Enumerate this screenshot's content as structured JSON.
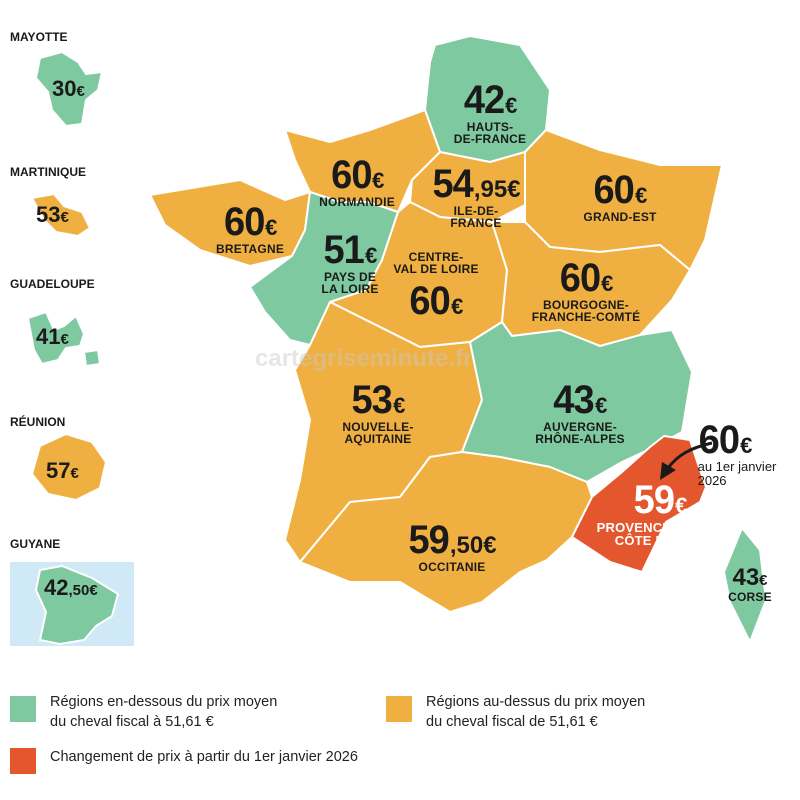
{
  "colors": {
    "below": "#7fc9a0",
    "above": "#f0b041",
    "change": "#e4572e",
    "sea": "#cfe9f7"
  },
  "watermark": "cartegriseminute.fr",
  "regions": {
    "hdf": {
      "value": "42",
      "suffix": "€",
      "name": "HAUTS-\nDE-FRANCE"
    },
    "normandie": {
      "value": "60",
      "suffix": "€",
      "name": "NORMANDIE"
    },
    "idf": {
      "value": "54",
      "suffix": ",95€",
      "name": "ILE-DE-\nFRANCE"
    },
    "grandest": {
      "value": "60",
      "suffix": "€",
      "name": "GRAND-EST"
    },
    "bretagne": {
      "value": "60",
      "suffix": "€",
      "name": "BRETAGNE"
    },
    "pdl": {
      "value": "51",
      "suffix": "€",
      "name": "PAYS DE\nLA LOIRE"
    },
    "cvl": {
      "value": "60",
      "suffix": "€",
      "name": "CENTRE-\nVAL DE LOIRE"
    },
    "bfc": {
      "value": "60",
      "suffix": "€",
      "name": "BOURGOGNE-\nFRANCHE-COMTÉ"
    },
    "na": {
      "value": "53",
      "suffix": "€",
      "name": "NOUVELLE-\nAQUITAINE"
    },
    "ara": {
      "value": "43",
      "suffix": "€",
      "name": "AUVERGNE-\nRHÔNE-ALPES"
    },
    "paca": {
      "value": "59",
      "suffix": "€",
      "name": "PROVENCE- ALPES\nCÔTE D'AZUR"
    },
    "occitanie": {
      "value": "59",
      "suffix": ",50€",
      "name": "OCCITANIE"
    },
    "corse": {
      "value": "43",
      "suffix": "€",
      "name": "CORSE"
    }
  },
  "paca_change": {
    "value": "60",
    "suffix": "€",
    "note": "au 1er janvier\n2026"
  },
  "overseas": {
    "mayotte": {
      "name": "MAYOTTE",
      "value": "30",
      "suffix": "€"
    },
    "martinique": {
      "name": "MARTINIQUE",
      "value": "53",
      "suffix": "€"
    },
    "guadeloupe": {
      "name": "GUADELOUPE",
      "value": "41",
      "suffix": "€"
    },
    "reunion": {
      "name": "RÉUNION",
      "value": "57",
      "suffix": "€"
    },
    "guyane": {
      "name": "GUYANE",
      "value": "42",
      "suffix": ",50€"
    }
  },
  "legend": {
    "below": "Régions en-dessous du prix moyen\ndu cheval fiscal à 51,61 €",
    "above": "Régions au-dessus du prix moyen\ndu cheval fiscal de 51,61 €",
    "change": "Changement de prix à partir du 1er janvier 2026"
  }
}
